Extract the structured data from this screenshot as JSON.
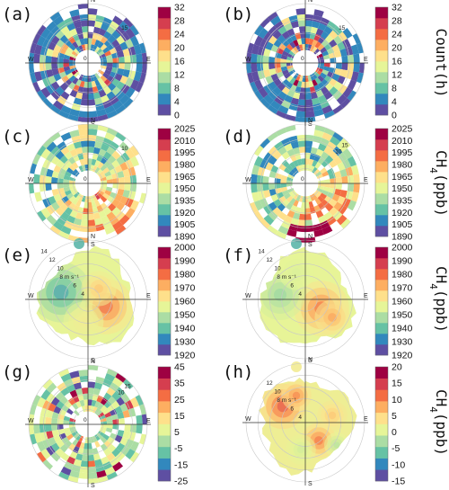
{
  "figure": {
    "colors": [
      "#5e4fa2",
      "#3288bd",
      "#66c2a5",
      "#abdda4",
      "#e6f598",
      "#fee08b",
      "#fdae61",
      "#f46d43",
      "#d53e4f",
      "#9e0142"
    ],
    "rows": [
      {
        "units_label": "Count(h)",
        "units_sub": ""
      },
      {
        "units_label": "CH",
        "units_sub": "4",
        "units_rest": "(ppb)"
      },
      {
        "units_label": "CH",
        "units_sub": "4",
        "units_rest": "(ppb)"
      },
      {
        "units_label": "CH",
        "units_sub": "4",
        "units_rest": "(ppb)"
      }
    ]
  },
  "chart_data": [
    {
      "id": "a",
      "type": "heatmap",
      "projection": "polar",
      "panel_label": "(a)",
      "compass": [
        "N",
        "E",
        "S",
        "W"
      ],
      "radial_labels": [
        "0",
        "15"
      ],
      "colorbar": {
        "ticks": [
          0,
          4,
          8,
          12,
          16,
          20,
          24,
          28,
          32
        ],
        "range": [
          0,
          32
        ]
      }
    },
    {
      "id": "b",
      "type": "heatmap",
      "projection": "polar",
      "panel_label": "(b)",
      "compass": [
        "N",
        "E",
        "S",
        "W"
      ],
      "radial_labels": [
        "0",
        "15"
      ],
      "colorbar": {
        "ticks": [
          0,
          4,
          8,
          12,
          16,
          20,
          24,
          28,
          32
        ],
        "range": [
          0,
          32
        ]
      }
    },
    {
      "id": "c",
      "type": "heatmap",
      "projection": "polar",
      "panel_label": "(c)",
      "compass": [
        "N",
        "E",
        "S",
        "W"
      ],
      "radial_labels": [
        "0",
        "10"
      ],
      "colorbar": {
        "ticks": [
          1890,
          1905,
          1920,
          1935,
          1950,
          1965,
          1980,
          1995,
          2010,
          2025
        ],
        "range": [
          1890,
          2025
        ]
      }
    },
    {
      "id": "d",
      "type": "heatmap",
      "projection": "polar",
      "panel_label": "(d)",
      "compass": [
        "N",
        "E",
        "S",
        "W"
      ],
      "radial_labels": [
        "0",
        "10",
        "15"
      ],
      "colorbar": {
        "ticks": [
          1890,
          1905,
          1920,
          1935,
          1950,
          1965,
          1980,
          1995,
          2010,
          2025
        ],
        "range": [
          1890,
          2025
        ]
      }
    },
    {
      "id": "e",
      "type": "heatmap",
      "projection": "polar",
      "panel_label": "(e)",
      "compass": [
        "N",
        "E",
        "S",
        "W"
      ],
      "radial_labels": [
        "4",
        "6",
        "8 m s⁻¹",
        "10",
        "12",
        "14"
      ],
      "colorbar": {
        "ticks": [
          1920,
          1930,
          1940,
          1950,
          1960,
          1970,
          1980,
          1990,
          2000
        ],
        "range": [
          1920,
          2000
        ]
      }
    },
    {
      "id": "f",
      "type": "heatmap",
      "projection": "polar",
      "panel_label": "(f)",
      "compass": [
        "N",
        "E",
        "S",
        "W"
      ],
      "radial_labels": [
        "4",
        "6",
        "8 m s⁻¹",
        "10",
        "12",
        "14"
      ],
      "colorbar": {
        "ticks": [
          1920,
          1930,
          1940,
          1950,
          1960,
          1970,
          1980,
          1990,
          2000
        ],
        "range": [
          1920,
          2000
        ]
      }
    },
    {
      "id": "g",
      "type": "heatmap",
      "projection": "polar",
      "panel_label": "(g)",
      "compass": [
        "N",
        "E",
        "S",
        "W"
      ],
      "radial_labels": [
        "0",
        "10",
        "15"
      ],
      "colorbar": {
        "ticks": [
          -25,
          -15,
          -5,
          5,
          15,
          25,
          35,
          45
        ],
        "range": [
          -25,
          45
        ]
      }
    },
    {
      "id": "h",
      "type": "heatmap",
      "projection": "polar",
      "panel_label": "(h)",
      "compass": [
        "N",
        "E",
        "S",
        "W"
      ],
      "radial_labels": [
        "4",
        "6",
        "8 m s⁻¹",
        "10",
        "12"
      ],
      "colorbar": {
        "ticks": [
          -15,
          -10,
          -5,
          0,
          5,
          10,
          15,
          20
        ],
        "range": [
          -15,
          20
        ]
      }
    }
  ]
}
